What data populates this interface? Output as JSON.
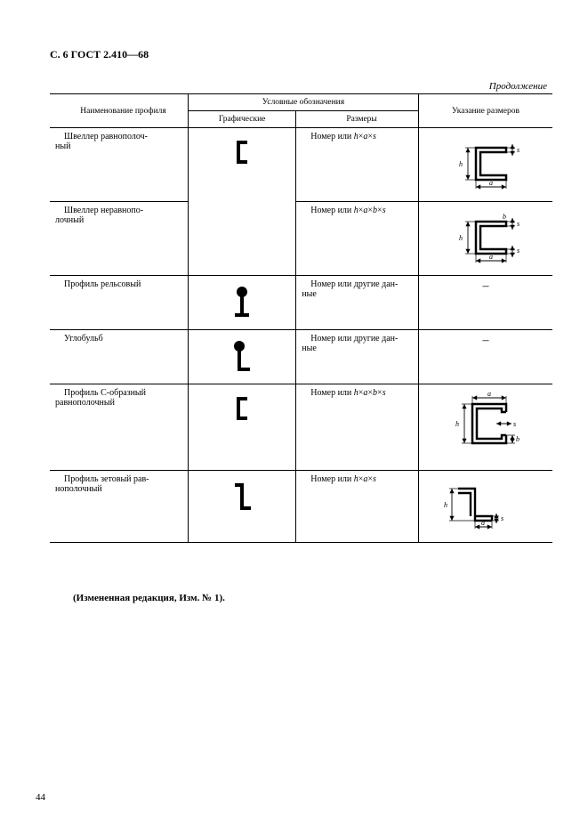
{
  "header": "С. 6 ГОСТ 2.410—68",
  "continuation": "Продолжение",
  "columns": {
    "name": "Наименование профиля",
    "symbols": "Условные обозначения",
    "graphic": "Графические",
    "sizes": "Размеры",
    "dimensions": "Указание размеров"
  },
  "rows": [
    {
      "name": "Швеллер равнополочный",
      "size_html": "Номер или <i>h</i>×<i>a</i>×<i>s</i>",
      "dim": "shveller_eq",
      "graphic": "c_shape",
      "graphic_span": 2
    },
    {
      "name": "Швеллер неравнополочный",
      "size_html": "Номер или <i>h</i>×<i>a</i>×<i>b</i>×<i>s</i>",
      "dim": "shveller_neq",
      "graphic": null
    },
    {
      "name": "Профиль рельсовый",
      "size_html": "Номер или другие данные",
      "dim": "dash",
      "graphic": "rail"
    },
    {
      "name": "Углобульб",
      "size_html": "Номер или другие данные",
      "dim": "dash",
      "graphic": "bulb"
    },
    {
      "name": "Профиль С-образный равнополочный",
      "size_html": "Номер или <i>h</i>×<i>a</i>×<i>b</i>×<i>s</i>",
      "dim": "c_profile",
      "graphic": "c_shape"
    },
    {
      "name": "Профиль зетовый равнополочный",
      "size_html": "Номер или <i>h</i>×<i>a</i>×<i>s</i>",
      "dim": "z_profile",
      "graphic": "z_shape"
    }
  ],
  "footnote": "(Измененная редакция, Изм. № 1).",
  "pagenum": "44",
  "style": {
    "page_bg": "#ffffff",
    "text_color": "#000000",
    "stroke": "#000000",
    "font": "Times New Roman"
  }
}
